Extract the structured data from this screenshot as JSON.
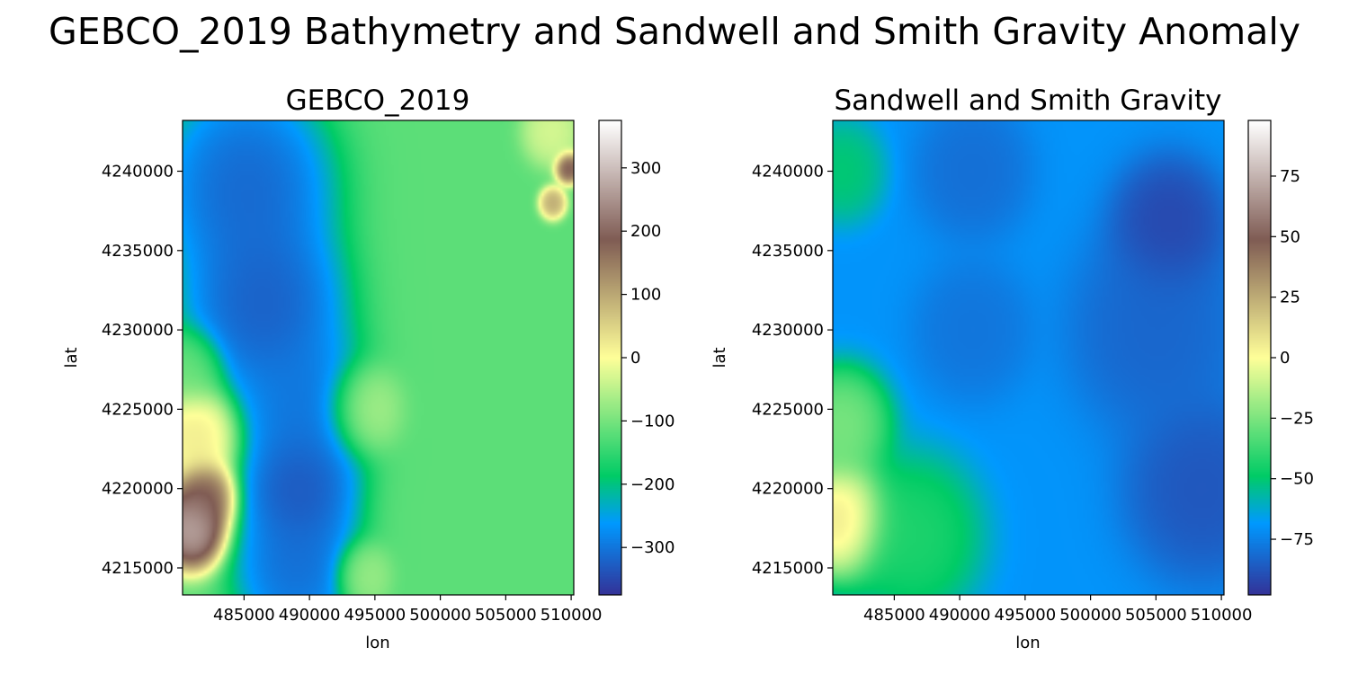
{
  "figure": {
    "title": "GEBCO_2019 Bathymetry and Sandwell and Smith Gravity Anomaly"
  },
  "chart_data": [
    {
      "type": "heatmap",
      "title": "GEBCO_2019",
      "xlabel": "lon",
      "ylabel": "lat",
      "xlim": [
        480300,
        510200
      ],
      "ylim": [
        4213300,
        4243200
      ],
      "xticks": [
        485000,
        490000,
        495000,
        500000,
        505000,
        510000
      ],
      "xtick_labels": [
        "485000",
        "490000",
        "495000",
        "500000",
        "505000",
        "510000"
      ],
      "yticks": [
        4215000,
        4220000,
        4225000,
        4230000,
        4235000,
        4240000
      ],
      "ytick_labels": [
        "4215000",
        "4220000",
        "4225000",
        "4230000",
        "4235000",
        "4240000"
      ],
      "colormap": "terrain",
      "colorbar": {
        "vmin": -375,
        "vmax": 375,
        "ticks": [
          -300,
          -200,
          -100,
          0,
          100,
          200,
          300
        ],
        "tick_labels": [
          "−300",
          "−200",
          "−100",
          "0",
          "100",
          "200",
          "300"
        ]
      },
      "grid": false,
      "field": {
        "baseline": -120,
        "features": [
          {
            "lon": 485200,
            "lat": 4239000,
            "value": -340,
            "spread": 4500
          },
          {
            "lon": 486500,
            "lat": 4231500,
            "value": -350,
            "spread": 4200
          },
          {
            "lon": 489500,
            "lat": 4225000,
            "value": -320,
            "spread": 3500
          },
          {
            "lon": 489200,
            "lat": 4220000,
            "value": -360,
            "spread": 3000
          },
          {
            "lon": 489000,
            "lat": 4215000,
            "value": -330,
            "spread": 3200
          },
          {
            "lon": 481000,
            "lat": 4217500,
            "value": 320,
            "spread": 1800
          },
          {
            "lon": 482000,
            "lat": 4219500,
            "value": 220,
            "spread": 1600
          },
          {
            "lon": 481500,
            "lat": 4223500,
            "value": 40,
            "spread": 2200
          },
          {
            "lon": 481000,
            "lat": 4227500,
            "value": -100,
            "spread": 1800
          },
          {
            "lon": 509800,
            "lat": 4240200,
            "value": 230,
            "spread": 700
          },
          {
            "lon": 508600,
            "lat": 4238000,
            "value": 120,
            "spread": 700
          },
          {
            "lon": 508500,
            "lat": 4242500,
            "value": -20,
            "spread": 1500
          },
          {
            "lon": 494000,
            "lat": 4225000,
            "value": -40,
            "spread": 2000
          },
          {
            "lon": 494000,
            "lat": 4214500,
            "value": -60,
            "spread": 1500
          }
        ]
      }
    },
    {
      "type": "heatmap",
      "title": "Sandwell and Smith Gravity",
      "xlabel": "lon",
      "ylabel": "lat",
      "xlim": [
        480300,
        510200
      ],
      "ylim": [
        4213300,
        4243200
      ],
      "xticks": [
        485000,
        490000,
        495000,
        500000,
        505000,
        510000
      ],
      "xtick_labels": [
        "485000",
        "490000",
        "495000",
        "500000",
        "505000",
        "510000"
      ],
      "yticks": [
        4215000,
        4220000,
        4225000,
        4230000,
        4235000,
        4240000
      ],
      "ytick_labels": [
        "4215000",
        "4220000",
        "4225000",
        "4230000",
        "4235000",
        "4240000"
      ],
      "colormap": "terrain",
      "colorbar": {
        "vmin": -98,
        "vmax": 98,
        "ticks": [
          -75,
          -50,
          -25,
          0,
          25,
          50,
          75
        ],
        "tick_labels": [
          "−75",
          "−50",
          "−25",
          "0",
          "25",
          "50",
          "75"
        ]
      },
      "grid": false,
      "field": {
        "baseline": -70,
        "features": [
          {
            "lon": 481000,
            "lat": 4218000,
            "value": 18,
            "spread": 2500
          },
          {
            "lon": 481000,
            "lat": 4224000,
            "value": -20,
            "spread": 2500
          },
          {
            "lon": 481000,
            "lat": 4240000,
            "value": -48,
            "spread": 2200
          },
          {
            "lon": 486500,
            "lat": 4217000,
            "value": -40,
            "spread": 3500
          },
          {
            "lon": 506000,
            "lat": 4236500,
            "value": -95,
            "spread": 3000
          },
          {
            "lon": 508500,
            "lat": 4220000,
            "value": -90,
            "spread": 4000
          },
          {
            "lon": 505000,
            "lat": 4230000,
            "value": -85,
            "spread": 4500
          },
          {
            "lon": 491000,
            "lat": 4240000,
            "value": -82,
            "spread": 3000
          },
          {
            "lon": 491000,
            "lat": 4230000,
            "value": -80,
            "spread": 3000
          }
        ]
      }
    }
  ]
}
